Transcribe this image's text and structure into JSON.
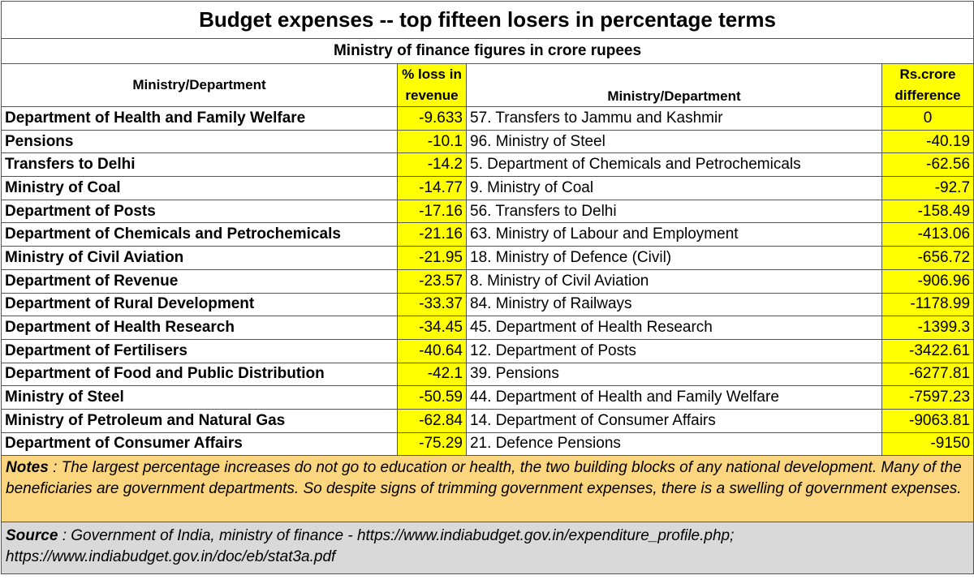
{
  "title": "Budget expenses -- top fifteen losers in percentage terms",
  "subtitle": "Ministry of finance figures in crore rupees",
  "headers": {
    "col1": "Ministry/Department",
    "col2_line1": "% loss in",
    "col2_line2": "revenue",
    "col3": "Ministry/Department",
    "col4_line1": "Rs.crore",
    "col4_line2": "difference"
  },
  "rows": [
    {
      "dept": "Department of Health and Family Welfare",
      "pct": "-9.633",
      "dept2": "57. Transfers to Jammu and Kashmir",
      "diff": "0"
    },
    {
      "dept": "Pensions",
      "pct": "-10.1",
      "dept2": "96. Ministry of Steel",
      "diff": "-40.19"
    },
    {
      "dept": "Transfers to Delhi",
      "pct": "-14.2",
      "dept2": "5. Department of Chemicals and Petrochemicals",
      "diff": "-62.56"
    },
    {
      "dept": "Ministry of Coal",
      "pct": "-14.77",
      "dept2": "9. Ministry of Coal",
      "diff": "-92.7"
    },
    {
      "dept": "Department of Posts",
      "pct": "-17.16",
      "dept2": "56. Transfers to Delhi",
      "diff": "-158.49"
    },
    {
      "dept": "Department of Chemicals and Petrochemicals",
      "pct": "-21.16",
      "dept2": "63. Ministry of Labour and Employment",
      "diff": "-413.06"
    },
    {
      "dept": "Ministry of Civil Aviation",
      "pct": "-21.95",
      "dept2": "18. Ministry of Defence (Civil)",
      "diff": "-656.72"
    },
    {
      "dept": "Department of Revenue",
      "pct": "-23.57",
      "dept2": "8. Ministry of Civil Aviation",
      "diff": "-906.96"
    },
    {
      "dept": "Department of Rural Development",
      "pct": "-33.37",
      "dept2": "84. Ministry of Railways",
      "diff": "-1178.99"
    },
    {
      "dept": "Department of Health Research",
      "pct": "-34.45",
      "dept2": "45. Department of Health Research",
      "diff": "-1399.3"
    },
    {
      "dept": "Department of Fertilisers",
      "pct": "-40.64",
      "dept2": "12. Department of Posts",
      "diff": "-3422.61"
    },
    {
      "dept": "Department of Food and Public Distribution",
      "pct": "-42.1",
      "dept2": "39. Pensions",
      "diff": "-6277.81"
    },
    {
      "dept": "Ministry of Steel",
      "pct": "-50.59",
      "dept2": "44. Department of Health and Family Welfare",
      "diff": "-7597.23"
    },
    {
      "dept": "Ministry of Petroleum and Natural Gas",
      "pct": "-62.84",
      "dept2": "14. Department of Consumer Affairs",
      "diff": "-9063.81"
    },
    {
      "dept": "Department of Consumer Affairs",
      "pct": "-75.29",
      "dept2": "21. Defence Pensions",
      "diff": "-9150"
    }
  ],
  "notes": {
    "label": "Notes",
    "text": " : The largest percentage increases do not go to education or health, the two building blocks of any national development. Many of the beneficiaries are government departments.  So despite signs of trimming government expenses, there is a swelling of government expenses."
  },
  "source": {
    "label": "Source",
    "text": " : Government of India, ministry of finance -  https://www.indiabudget.gov.in/expenditure_profile.php; https://www.indiabudget.gov.in/doc/eb/stat3a.pdf"
  },
  "colors": {
    "highlight": "#ffff00",
    "notes_bg": "#fcd57f",
    "source_bg": "#d9d9d9"
  }
}
